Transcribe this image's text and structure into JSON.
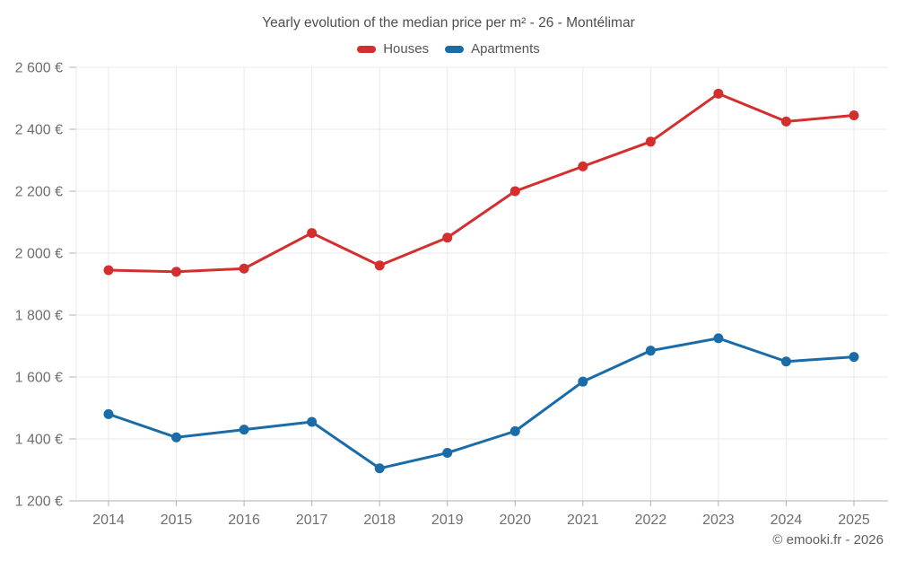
{
  "title": "Yearly evolution of the median price per m² - 26 - Montélimar",
  "legend": {
    "items": [
      {
        "label": "Houses",
        "color": "#d32f2f"
      },
      {
        "label": "Apartments",
        "color": "#1a6ca8"
      }
    ]
  },
  "attribution": "© emooki.fr - 2026",
  "colors": {
    "houses": "#d32f2f",
    "apartments": "#1a6ca8",
    "grid": "#e9e9e9",
    "axis": "#b0b0b0",
    "tick_label": "#6f6f6f",
    "title_text": "#4f4f4f",
    "background": "#ffffff"
  },
  "chart_data": {
    "type": "line",
    "title": "Yearly evolution of the median price per m² - 26 - Montélimar",
    "xlabel": "",
    "ylabel": "",
    "categories": [
      "2014",
      "2015",
      "2016",
      "2017",
      "2018",
      "2019",
      "2020",
      "2021",
      "2022",
      "2023",
      "2024",
      "2025"
    ],
    "series": [
      {
        "name": "Houses",
        "color": "#d32f2f",
        "values": [
          1945,
          1940,
          1950,
          2065,
          1960,
          2050,
          2200,
          2280,
          2360,
          2515,
          2425,
          2445
        ]
      },
      {
        "name": "Apartments",
        "color": "#1a6ca8",
        "values": [
          1480,
          1405,
          1430,
          1455,
          1305,
          1355,
          1425,
          1585,
          1685,
          1725,
          1650,
          1665
        ]
      }
    ],
    "ylim": [
      1200,
      2600
    ],
    "y_ticks": [
      1200,
      1400,
      1600,
      1800,
      2000,
      2200,
      2400,
      2600
    ],
    "y_tick_labels": [
      "1 200 €",
      "1 400 €",
      "1 600 €",
      "1 800 €",
      "2 000 €",
      "2 200 €",
      "2 400 €",
      "2 600 €"
    ],
    "y_tick_suffix": " €",
    "grid": true,
    "legend_position": "top",
    "marker": "circle"
  }
}
